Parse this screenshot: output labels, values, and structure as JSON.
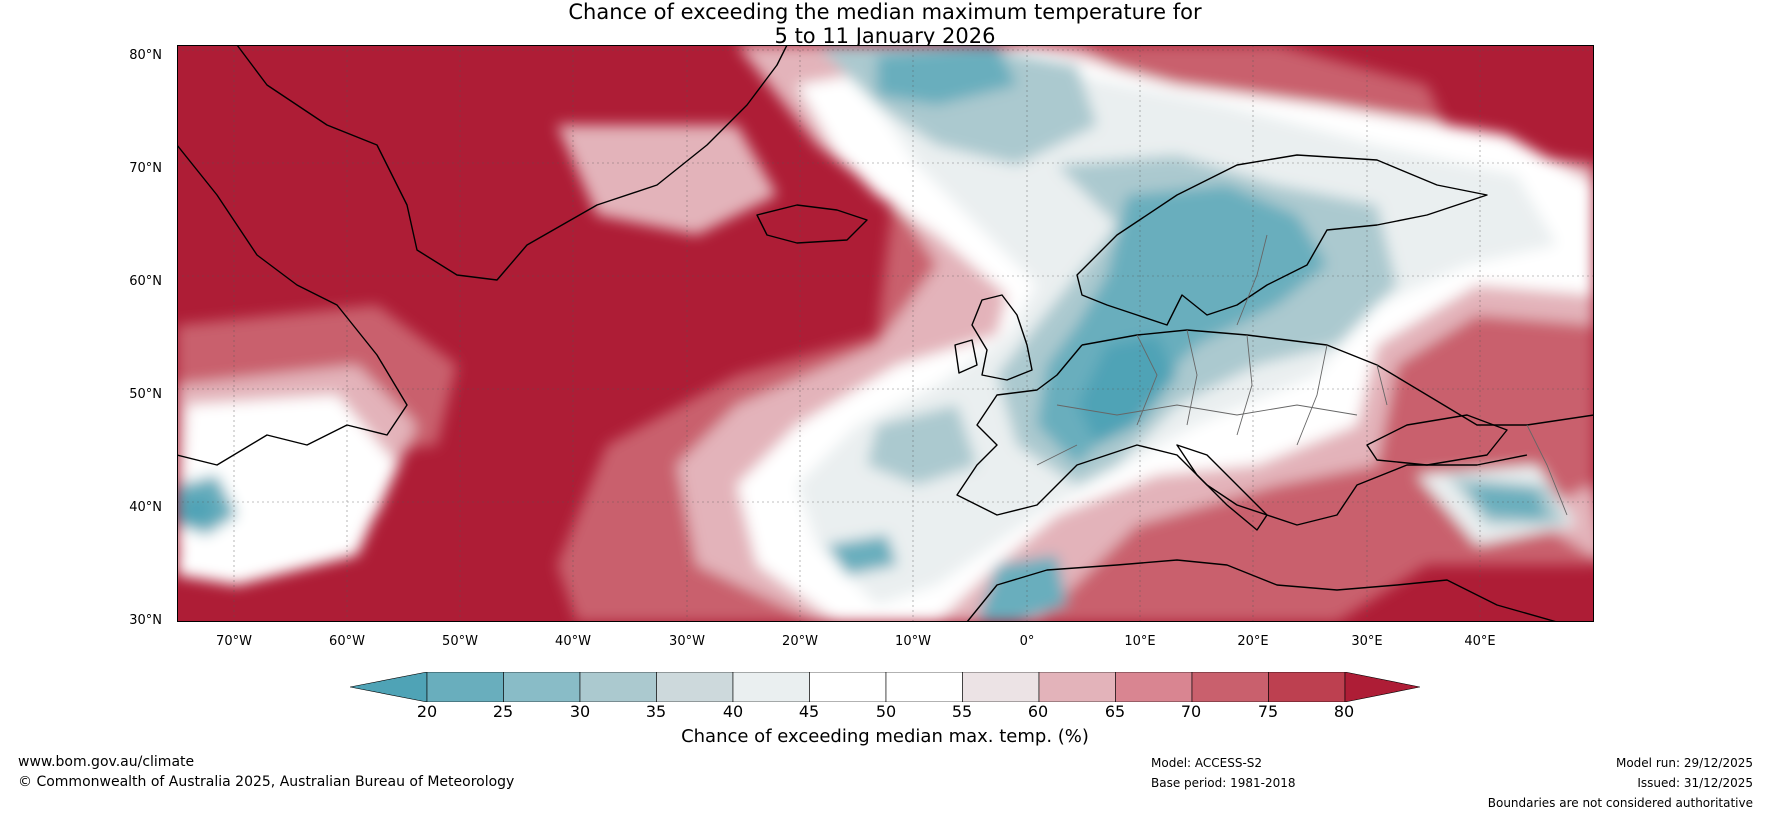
{
  "title": {
    "line1": "Chance of exceeding the median maximum temperature for",
    "line2": "5 to 11 January 2026"
  },
  "axes": {
    "lat_labels": [
      "80°N",
      "70°N",
      "60°N",
      "50°N",
      "40°N",
      "30°N"
    ],
    "lon_labels": [
      "70°W",
      "60°W",
      "50°W",
      "40°W",
      "30°W",
      "20°W",
      "10°W",
      "0°",
      "10°E",
      "20°E",
      "30°E",
      "40°E"
    ],
    "lon_range": [
      -75,
      50
    ],
    "lat_range": [
      30,
      81
    ]
  },
  "colorbar": {
    "ticks": [
      "20",
      "25",
      "30",
      "35",
      "40",
      "45",
      "50",
      "55",
      "60",
      "65",
      "70",
      "75",
      "80"
    ],
    "label": "Chance of exceeding median max. temp. (%)",
    "colors": [
      "#4fa3b6",
      "#69aebd",
      "#89bcc7",
      "#abc9cf",
      "#cdd9dc",
      "#eaeff0",
      "#ffffff",
      "#ffffff",
      "#ece3e5",
      "#e3b3ba",
      "#d98591",
      "#c9606d",
      "#bd4050",
      "#ae1d36"
    ],
    "colors_note": "first = below-20 arrow, last = above-80 arrow"
  },
  "footer": {
    "url": "www.bom.gov.au/climate",
    "copyright": "© Commonwealth of Australia 2025, Australian Bureau of Meteorology",
    "model": "Model: ACCESS-S2",
    "base_period": "Base period: 1981-2018",
    "model_run": "Model run: 29/12/2025",
    "issued": "Issued: 31/12/2025",
    "disclaimer": "Boundaries are not considered authoritative"
  }
}
